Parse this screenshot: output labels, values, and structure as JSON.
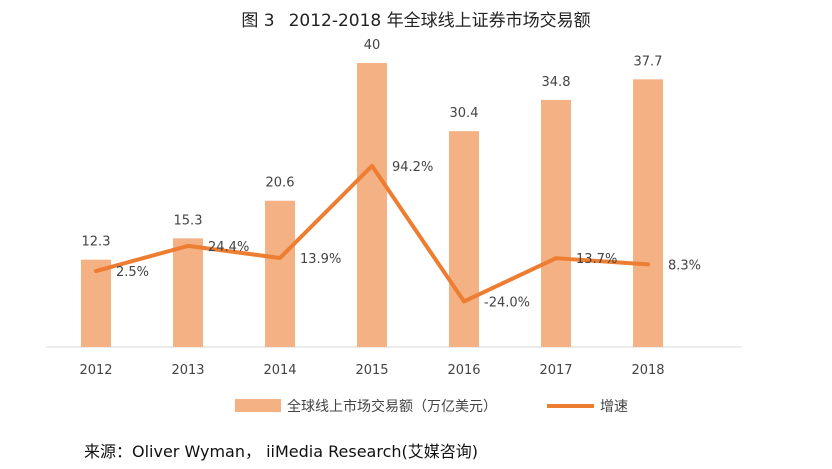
{
  "figure": {
    "number": "图 3",
    "title": "2012-2018 年全球线上证券市场交易额"
  },
  "chart_data": {
    "type": "bar",
    "categories": [
      "2012",
      "2013",
      "2014",
      "2015",
      "2016",
      "2017",
      "2018"
    ],
    "series": [
      {
        "name": "全球线上市场交易额（万亿美元）",
        "kind": "bar",
        "color": "#f4b183",
        "values": [
          12.3,
          15.3,
          20.6,
          40,
          30.4,
          34.8,
          37.7
        ],
        "value_labels": [
          "12.3",
          "15.3",
          "20.6",
          "40",
          "30.4",
          "34.8",
          "37.7"
        ]
      },
      {
        "name": "增速",
        "kind": "line",
        "color": "#ed7d31",
        "values": [
          2.5,
          24.4,
          13.9,
          94.2,
          -24.0,
          13.7,
          8.3
        ],
        "value_labels": [
          "2.5%",
          "24.4%",
          "13.9%",
          "94.2%",
          "-24.0%",
          "13.7%",
          "8.3%"
        ]
      }
    ],
    "ylim_bar": [
      0,
      45
    ],
    "ylim_line": [
      -40,
      130
    ],
    "legend_position": "bottom"
  },
  "source": "来源：Oliver Wyman，  iiMedia Research(艾媒咨询)"
}
